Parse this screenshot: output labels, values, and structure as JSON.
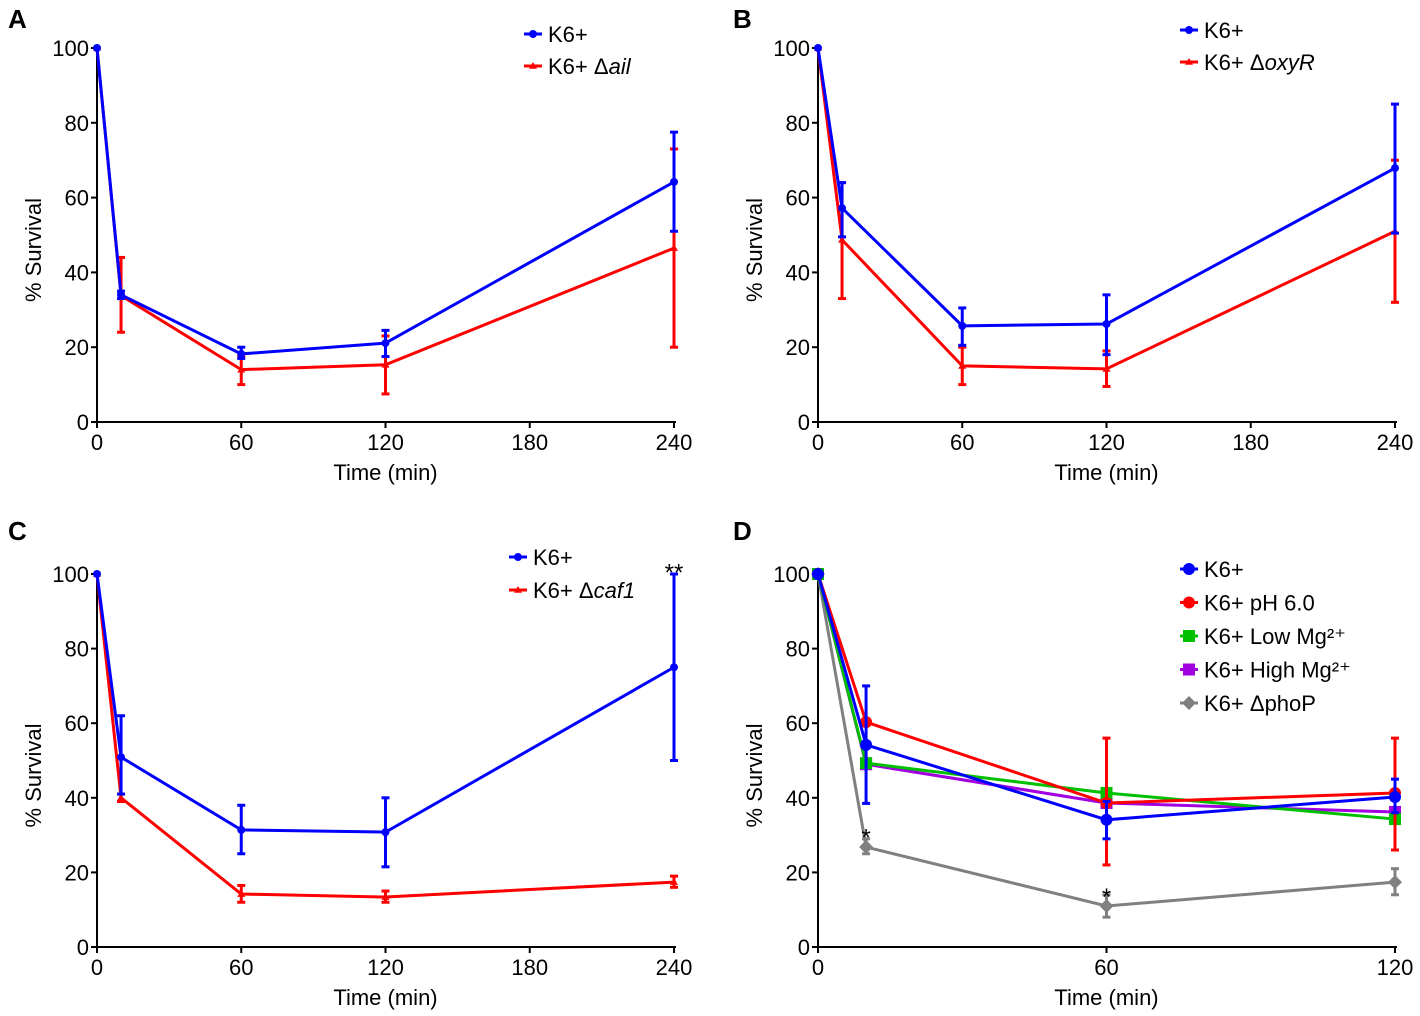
{
  "chart_data": [
    {
      "panel": "A",
      "type": "line",
      "xlabel": "Time (min)",
      "ylabel": "% Survival",
      "xlim": [
        0,
        240
      ],
      "ylim": [
        0,
        100
      ],
      "xticks": [
        0,
        60,
        120,
        180,
        240
      ],
      "yticks": [
        0,
        20,
        40,
        60,
        80,
        100
      ],
      "x": [
        0,
        10,
        60,
        120,
        240
      ],
      "legend_position": "top-right",
      "series": [
        {
          "name": "K6+",
          "color": "#0000ff",
          "marker": "circle",
          "values": [
            100,
            34,
            18.2,
            21.1,
            64.2
          ],
          "errors": [
            [
              100,
              100
            ],
            [
              33,
              35
            ],
            [
              17,
              20
            ],
            [
              17.5,
              24.5
            ],
            [
              51,
              77.5
            ]
          ]
        },
        {
          "name": "K6+ Δail",
          "italic_part": "ail",
          "color": "#ff0000",
          "marker": "triangle",
          "values": [
            100,
            33.8,
            14,
            15.3,
            46.5
          ],
          "errors": [
            [
              100,
              100
            ],
            [
              24,
              44
            ],
            [
              10,
              17.5
            ],
            [
              7.5,
              23
            ],
            [
              20,
              73
            ]
          ]
        }
      ],
      "annotations": []
    },
    {
      "panel": "B",
      "type": "line",
      "xlabel": "Time (min)",
      "ylabel": "% Survival",
      "xlim": [
        0,
        240
      ],
      "ylim": [
        0,
        100
      ],
      "xticks": [
        0,
        60,
        120,
        180,
        240
      ],
      "yticks": [
        0,
        20,
        40,
        60,
        80,
        100
      ],
      "x": [
        0,
        10,
        60,
        120,
        240
      ],
      "legend_position": "top-right",
      "series": [
        {
          "name": "K6+",
          "color": "#0000ff",
          "marker": "circle",
          "values": [
            100,
            57.2,
            25.7,
            26.2,
            67.9
          ],
          "errors": [
            [
              100,
              100
            ],
            [
              49.5,
              64
            ],
            [
              20.5,
              30.5
            ],
            [
              18,
              34
            ],
            [
              50.5,
              85
            ]
          ]
        },
        {
          "name": "K6+ ΔoxyR",
          "italic_part": "oxyR",
          "color": "#ff0000",
          "marker": "triangle",
          "values": [
            100,
            48.7,
            15,
            14.2,
            51
          ],
          "errors": [
            [
              100,
              100
            ],
            [
              33,
              64
            ],
            [
              10,
              20
            ],
            [
              9.5,
              19
            ],
            [
              32,
              70
            ]
          ]
        }
      ],
      "annotations": []
    },
    {
      "panel": "C",
      "type": "line",
      "xlabel": "Time (min)",
      "ylabel": "% Survival",
      "xlim": [
        0,
        240
      ],
      "ylim": [
        0,
        100
      ],
      "xticks": [
        0,
        60,
        120,
        180,
        240
      ],
      "yticks": [
        0,
        20,
        40,
        60,
        80,
        100
      ],
      "x": [
        0,
        10,
        60,
        120,
        240
      ],
      "legend_position": "top-right",
      "series": [
        {
          "name": "K6+",
          "color": "#0000ff",
          "marker": "circle",
          "values": [
            100,
            50.9,
            31.4,
            30.8,
            75
          ],
          "errors": [
            [
              100,
              100
            ],
            [
              41,
              62
            ],
            [
              25,
              38
            ],
            [
              21.5,
              40
            ],
            [
              50,
              100
            ]
          ]
        },
        {
          "name": "K6+ Δcaf1",
          "italic_part": "caf1",
          "color": "#ff0000",
          "marker": "triangle",
          "values": [
            100,
            40,
            14.2,
            13.4,
            17.4
          ],
          "errors": [
            [
              100,
              100
            ],
            [
              39,
              41
            ],
            [
              12,
              16.5
            ],
            [
              12,
              15
            ],
            [
              16,
              19
            ]
          ]
        }
      ],
      "annotations": [
        {
          "text": "**",
          "x": 240,
          "y": 102
        }
      ]
    },
    {
      "panel": "D",
      "type": "line",
      "xlabel": "Time (min)",
      "ylabel": "% Survival",
      "xlim": [
        0,
        120
      ],
      "ylim": [
        0,
        100
      ],
      "xticks": [
        0,
        60,
        120
      ],
      "yticks": [
        0,
        20,
        40,
        60,
        80,
        100
      ],
      "x": [
        0,
        10,
        60,
        120
      ],
      "legend_position": "top-right",
      "series": [
        {
          "name": "K6+",
          "color": "#0000ff",
          "marker": "circle",
          "values": [
            100,
            54.2,
            34.1,
            40.2
          ],
          "errors": [
            [
              100,
              100
            ],
            [
              38.5,
              70
            ],
            [
              29,
              39
            ],
            [
              36,
              45
            ]
          ]
        },
        {
          "name": "K6+ pH 6.0",
          "color": "#ff0000",
          "marker": "circle",
          "values": [
            100,
            60.3,
            38.6,
            41.3
          ],
          "errors": [
            [
              100,
              100
            ],
            [
              60.3,
              60.3
            ],
            [
              22,
              56
            ],
            [
              26,
              56
            ]
          ]
        },
        {
          "name": "K6+ Low Mg²⁺",
          "color": "#00c000",
          "marker": "square",
          "values": [
            100,
            49.3,
            41.3,
            34.3
          ],
          "errors": [
            [
              100,
              100
            ],
            [
              49.3,
              49.3
            ],
            [
              41.3,
              41.3
            ],
            [
              34.3,
              34.3
            ]
          ]
        },
        {
          "name": "K6+ High Mg²⁺",
          "color": "#a000e0",
          "marker": "square",
          "values": [
            100,
            49,
            38.6,
            36.2
          ],
          "errors": [
            [
              100,
              100
            ],
            [
              49,
              49
            ],
            [
              38.6,
              38.6
            ],
            [
              36.2,
              36.2
            ]
          ]
        },
        {
          "name": "K6+ ΔphoP",
          "color": "#808080",
          "marker": "diamond",
          "values": [
            100,
            26.8,
            11,
            17.4
          ],
          "errors": [
            [
              100,
              100
            ],
            [
              25,
              29
            ],
            [
              8,
              14
            ],
            [
              14,
              21
            ]
          ]
        }
      ],
      "annotations": [
        {
          "text": "*",
          "x": 10,
          "y": 31
        },
        {
          "text": "*",
          "x": 60,
          "y": 15
        }
      ]
    }
  ]
}
